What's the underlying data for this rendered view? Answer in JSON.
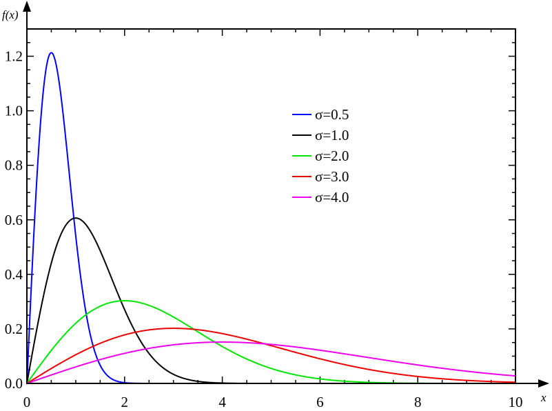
{
  "chart_data": {
    "type": "line",
    "title": "",
    "xlabel": "x",
    "ylabel": "f(x)",
    "xlim": [
      0,
      10
    ],
    "ylim": [
      0,
      1.3
    ],
    "x_ticks": [
      "0",
      "2",
      "4",
      "6",
      "8",
      "10"
    ],
    "y_ticks": [
      "0.0",
      "0.2",
      "0.4",
      "0.6",
      "0.8",
      "1.0",
      "1.2"
    ],
    "grid": false,
    "legend_position": "upper-right",
    "curve": "f(x) = x / sigma^2 * exp(-x^2 / (2 sigma^2))",
    "series": [
      {
        "name": "σ=0.5",
        "sigma": 0.5,
        "color": "#0000ff"
      },
      {
        "name": "σ=1.0",
        "sigma": 1.0,
        "color": "#000000"
      },
      {
        "name": "σ=2.0",
        "sigma": 2.0,
        "color": "#00e600"
      },
      {
        "name": "σ=3.0",
        "sigma": 3.0,
        "color": "#ee0000"
      },
      {
        "name": "σ=4.0",
        "sigma": 4.0,
        "color": "#ee00ee"
      }
    ]
  }
}
